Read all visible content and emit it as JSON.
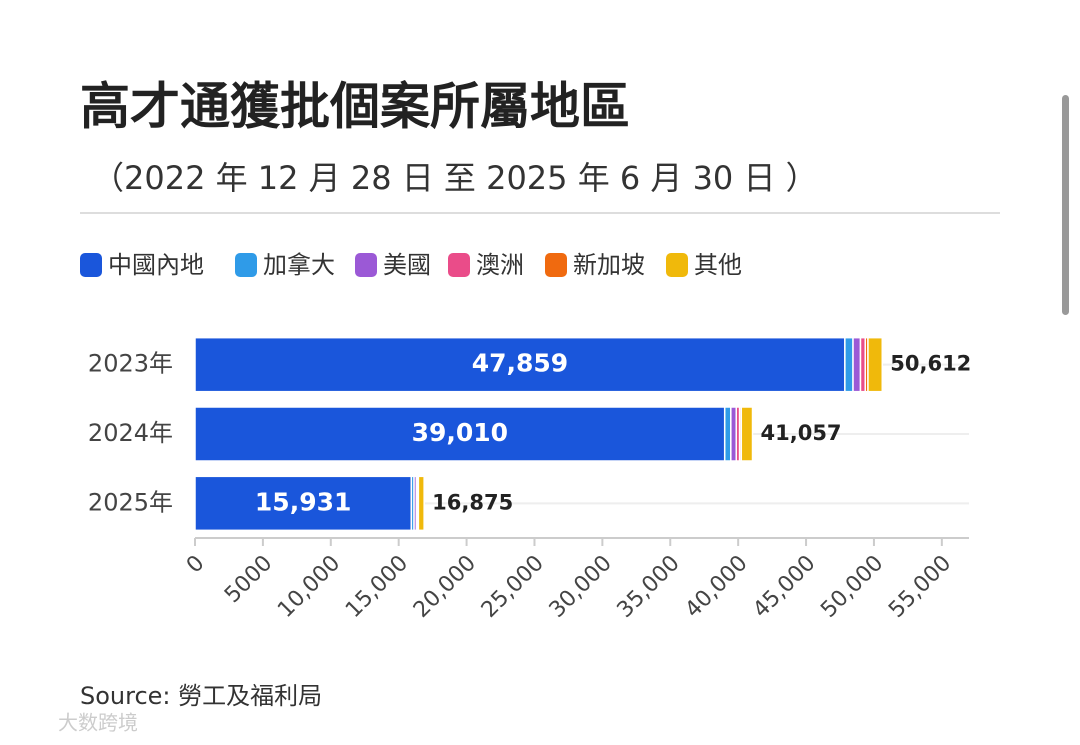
{
  "chart_data": {
    "type": "stacked-barh",
    "title": "高才通獲批個案所屬地區",
    "subtitle": "（2022 年 12 月 28 日 至 2025 年 6 月 30 日 ）",
    "categories": [
      "2023年",
      "2024年",
      "2025年"
    ],
    "series": [
      {
        "name": "中國內地",
        "color": "#1a56db",
        "values": [
          47859,
          39010,
          15931
        ],
        "value_labels": [
          "47,859",
          "39,010",
          "15,931"
        ]
      },
      {
        "name": "加拿大",
        "color": "#2f9be8",
        "values": [
          600,
          450,
          200
        ]
      },
      {
        "name": "美國",
        "color": "#9b59d6",
        "values": [
          550,
          400,
          180
        ]
      },
      {
        "name": "澳洲",
        "color": "#ea4c89",
        "values": [
          350,
          250,
          90
        ]
      },
      {
        "name": "新加坡",
        "color": "#f06a0f",
        "values": [
          200,
          120,
          50
        ]
      },
      {
        "name": "其他",
        "color": "#f0b90b",
        "values": [
          1053,
          827,
          424
        ]
      }
    ],
    "totals": [
      50612,
      41057,
      16875
    ],
    "total_labels": [
      "50,612",
      "41,057",
      "16,875"
    ],
    "xlim": [
      0,
      57000
    ],
    "xticks": [
      0,
      5000,
      {
        "value": 10000,
        "label": "10,000"
      },
      {
        "value": 15000,
        "label": "15,000"
      },
      {
        "value": 20000,
        "label": "20,000"
      },
      {
        "value": 25000,
        "label": "25,000"
      },
      {
        "value": 30000,
        "label": "30,000"
      },
      {
        "value": 35000,
        "label": "35,000"
      },
      {
        "value": 40000,
        "label": "40,000"
      },
      {
        "value": 45000,
        "label": "45,000"
      },
      {
        "value": 50000,
        "label": "50,000"
      },
      {
        "value": 55000,
        "label": "55,000"
      }
    ],
    "source": "Source: 勞工及福利局",
    "watermark": "大数跨境"
  }
}
